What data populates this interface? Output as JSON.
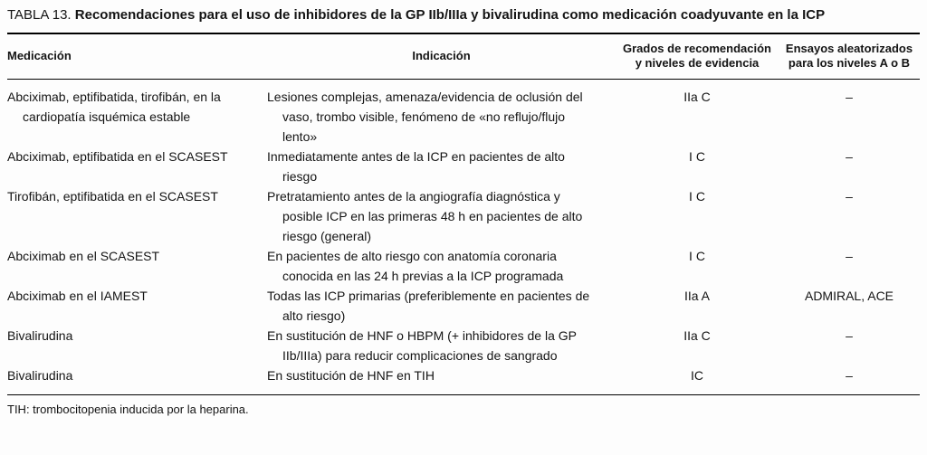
{
  "title": {
    "label": "TABLA 13.",
    "text": "Recomendaciones para el uso de inhibidores de la GP IIb/IIIa y bivalirudina como medicación coadyuvante en la ICP"
  },
  "table": {
    "headers": {
      "medication": "Medicación",
      "indication": "Indicación",
      "grade": [
        "Grados de recomendación",
        "y niveles de evidencia"
      ],
      "trials": [
        "Ensayos aleatorizados",
        "para los niveles A o B"
      ]
    },
    "rows": [
      {
        "medication": "Abciximab, eptifibatida, tirofibán, en la cardiopatía isquémica estable",
        "indication": "Lesiones complejas, amenaza/evidencia de oclusión del vaso, trombo visible, fenómeno de «no reflujo/flujo lento»",
        "grade": "IIa C",
        "trials": "–"
      },
      {
        "medication": "Abciximab, eptifibatida en el SCASEST",
        "indication": "Inmediatamente antes de la ICP en pacientes de alto riesgo",
        "grade": "I C",
        "trials": "–"
      },
      {
        "medication": "Tirofibán, eptifibatida en el SCASEST",
        "indication": "Pretratamiento antes de la angiografía diagnóstica y posible ICP en las primeras 48 h en pacientes de alto riesgo (general)",
        "grade": "I C",
        "trials": "–"
      },
      {
        "medication": "Abciximab en el SCASEST",
        "indication": "En pacientes de alto riesgo con anatomía coronaria conocida en las 24 h previas a la ICP programada",
        "grade": "I C",
        "trials": "–"
      },
      {
        "medication": "Abciximab en el IAMEST",
        "indication": "Todas las ICP primarias (preferiblemente en pacientes de alto riesgo)",
        "grade": "IIa A",
        "trials": "ADMIRAL, ACE"
      },
      {
        "medication": "Bivalirudina",
        "indication": "En sustitución de HNF o HBPM (+ inhibidores de la GP IIb/IIIa) para reducir complicaciones de sangrado",
        "grade": "IIa C",
        "trials": "–"
      },
      {
        "medication": "Bivalirudina",
        "indication": "En sustitución de HNF en TIH",
        "grade": "IC",
        "trials": "–"
      }
    ]
  },
  "footnote": "TIH: trombocitopenia inducida por la heparina."
}
